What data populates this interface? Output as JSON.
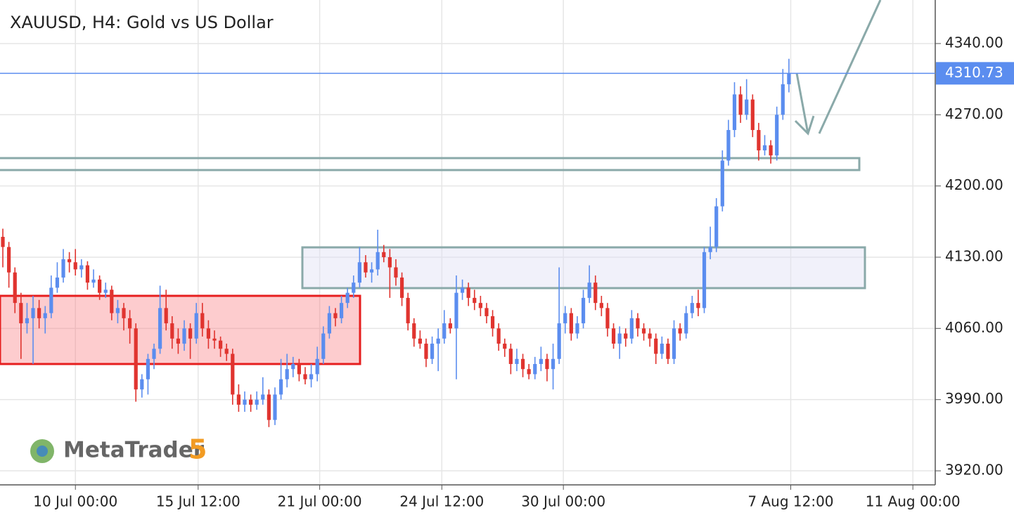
{
  "chart_data": {
    "type": "candlestick",
    "title": "XAUUSD, H4: Gold vs US Dollar",
    "watermark": "MetaTrader",
    "watermark_version": "5",
    "up_color": "#5b8def",
    "down_color": "#e0342f",
    "last_price": 4310.73,
    "ylim": [
      3906.2,
      4382.8
    ],
    "yticks": [
      {
        "value": 3920,
        "label": "3920.00"
      },
      {
        "value": 3990,
        "label": "3990.00"
      },
      {
        "value": 4060,
        "label": "4060.00"
      },
      {
        "value": 4130,
        "label": "4130.00"
      },
      {
        "value": 4200,
        "label": "4200.00"
      },
      {
        "value": 4270,
        "label": "4270.00"
      },
      {
        "value": 4340,
        "label": "4340.00"
      }
    ],
    "xlim": [
      -0.47,
      154.2
    ],
    "xticks": [
      {
        "value": 12,
        "label": "10 Jul 00:00"
      },
      {
        "value": 32.3,
        "label": "15 Jul 12:00"
      },
      {
        "value": 52.4,
        "label": "21 Jul 00:00"
      },
      {
        "value": 72.6,
        "label": "24 Jul 12:00"
      },
      {
        "value": 92.7,
        "label": "30 Jul 00:00"
      },
      {
        "value": 130.3,
        "label": "7 Aug 12:00"
      },
      {
        "value": 150.5,
        "label": "11 Aug 00:00"
      }
    ],
    "grid": true,
    "ohlc": [
      [
        4150,
        4158,
        4120,
        4140
      ],
      [
        4140,
        4145,
        4100,
        4115
      ],
      [
        4115,
        4120,
        4075,
        4085
      ],
      [
        4085,
        4095,
        4030,
        4065
      ],
      [
        4065,
        4085,
        4055,
        4070
      ],
      [
        4070,
        4092,
        4025,
        4080
      ],
      [
        4080,
        4088,
        4060,
        4070
      ],
      [
        4070,
        4082,
        4055,
        4075
      ],
      [
        4075,
        4112,
        4070,
        4100
      ],
      [
        4100,
        4125,
        4095,
        4110
      ],
      [
        4110,
        4138,
        4105,
        4128
      ],
      [
        4128,
        4135,
        4115,
        4125
      ],
      [
        4125,
        4138,
        4112,
        4118
      ],
      [
        4118,
        4128,
        4110,
        4122
      ],
      [
        4122,
        4126,
        4098,
        4105
      ],
      [
        4105,
        4118,
        4100,
        4108
      ],
      [
        4108,
        4112,
        4088,
        4095
      ],
      [
        4095,
        4105,
        4090,
        4098
      ],
      [
        4098,
        4102,
        4068,
        4075
      ],
      [
        4075,
        4088,
        4065,
        4080
      ],
      [
        4080,
        4085,
        4058,
        4070
      ],
      [
        4070,
        4078,
        4045,
        4060
      ],
      [
        4060,
        4065,
        3988,
        4000
      ],
      [
        4000,
        4015,
        3992,
        4010
      ],
      [
        4010,
        4035,
        3995,
        4030
      ],
      [
        4030,
        4045,
        4020,
        4040
      ],
      [
        4040,
        4102,
        4035,
        4080
      ],
      [
        4080,
        4098,
        4058,
        4065
      ],
      [
        4065,
        4072,
        4040,
        4050
      ],
      [
        4050,
        4060,
        4035,
        4045
      ],
      [
        4045,
        4068,
        4038,
        4060
      ],
      [
        4060,
        4065,
        4030,
        4050
      ],
      [
        4050,
        4085,
        4045,
        4075
      ],
      [
        4075,
        4085,
        4052,
        4060
      ],
      [
        4060,
        4068,
        4040,
        4050
      ],
      [
        4050,
        4058,
        4040,
        4048
      ],
      [
        4048,
        4052,
        4032,
        4040
      ],
      [
        4040,
        4045,
        4028,
        4035
      ],
      [
        4035,
        4040,
        3985,
        3995
      ],
      [
        3995,
        4005,
        3978,
        3985
      ],
      [
        3985,
        3998,
        3978,
        3990
      ],
      [
        3990,
        3995,
        3978,
        3985
      ],
      [
        3985,
        3998,
        3980,
        3990
      ],
      [
        3990,
        4012,
        3985,
        3995
      ],
      [
        3995,
        4000,
        3963,
        3970
      ],
      [
        3970,
        4002,
        3965,
        3995
      ],
      [
        3995,
        4030,
        3990,
        4010
      ],
      [
        4010,
        4035,
        4002,
        4020
      ],
      [
        4020,
        4032,
        4012,
        4025
      ],
      [
        4025,
        4030,
        4008,
        4015
      ],
      [
        4015,
        4022,
        4005,
        4010
      ],
      [
        4010,
        4025,
        4002,
        4015
      ],
      [
        4015,
        4042,
        4008,
        4030
      ],
      [
        4030,
        4062,
        4025,
        4055
      ],
      [
        4055,
        4082,
        4050,
        4075
      ],
      [
        4075,
        4080,
        4062,
        4070
      ],
      [
        4070,
        4092,
        4065,
        4085
      ],
      [
        4085,
        4100,
        4080,
        4095
      ],
      [
        4095,
        4112,
        4090,
        4105
      ],
      [
        4105,
        4140,
        4100,
        4125
      ],
      [
        4125,
        4132,
        4110,
        4115
      ],
      [
        4115,
        4125,
        4105,
        4118
      ],
      [
        4118,
        4157,
        4112,
        4135
      ],
      [
        4135,
        4142,
        4125,
        4130
      ],
      [
        4130,
        4138,
        4090,
        4120
      ],
      [
        4120,
        4128,
        4102,
        4110
      ],
      [
        4110,
        4115,
        4082,
        4090
      ],
      [
        4090,
        4095,
        4058,
        4065
      ],
      [
        4065,
        4070,
        4042,
        4050
      ],
      [
        4050,
        4058,
        4040,
        4045
      ],
      [
        4045,
        4050,
        4022,
        4030
      ],
      [
        4030,
        4052,
        4025,
        4045
      ],
      [
        4045,
        4060,
        4018,
        4050
      ],
      [
        4050,
        4078,
        4045,
        4065
      ],
      [
        4065,
        4070,
        4055,
        4060
      ],
      [
        4060,
        4112,
        4010,
        4095
      ],
      [
        4095,
        4108,
        4088,
        4100
      ],
      [
        4100,
        4105,
        4082,
        4090
      ],
      [
        4090,
        4098,
        4078,
        4085
      ],
      [
        4085,
        4092,
        4072,
        4080
      ],
      [
        4080,
        4085,
        4065,
        4072
      ],
      [
        4072,
        4078,
        4052,
        4060
      ],
      [
        4060,
        4065,
        4038,
        4045
      ],
      [
        4045,
        4050,
        4032,
        4040
      ],
      [
        4040,
        4045,
        4015,
        4025
      ],
      [
        4025,
        4040,
        4018,
        4030
      ],
      [
        4030,
        4035,
        4012,
        4020
      ],
      [
        4020,
        4025,
        4010,
        4015
      ],
      [
        4015,
        4032,
        4010,
        4025
      ],
      [
        4025,
        4042,
        4018,
        4030
      ],
      [
        4030,
        4035,
        4008,
        4020
      ],
      [
        4020,
        4045,
        4000,
        4030
      ],
      [
        4030,
        4120,
        4025,
        4065
      ],
      [
        4065,
        4082,
        4055,
        4075
      ],
      [
        4075,
        4080,
        4048,
        4055
      ],
      [
        4055,
        4072,
        4050,
        4065
      ],
      [
        4065,
        4098,
        4060,
        4090
      ],
      [
        4090,
        4122,
        4085,
        4105
      ],
      [
        4105,
        4112,
        4078,
        4085
      ],
      [
        4085,
        4092,
        4072,
        4080
      ],
      [
        4080,
        4085,
        4052,
        4060
      ],
      [
        4060,
        4065,
        4040,
        4045
      ],
      [
        4045,
        4062,
        4030,
        4055
      ],
      [
        4055,
        4060,
        4042,
        4050
      ],
      [
        4050,
        4078,
        4045,
        4070
      ],
      [
        4070,
        4075,
        4052,
        4060
      ],
      [
        4060,
        4065,
        4048,
        4055
      ],
      [
        4055,
        4060,
        4042,
        4050
      ],
      [
        4050,
        4055,
        4025,
        4035
      ],
      [
        4035,
        4052,
        4030,
        4045
      ],
      [
        4045,
        4050,
        4025,
        4030
      ],
      [
        4030,
        4068,
        4025,
        4060
      ],
      [
        4060,
        4065,
        4048,
        4055
      ],
      [
        4055,
        4082,
        4050,
        4075
      ],
      [
        4075,
        4092,
        4070,
        4085
      ],
      [
        4085,
        4098,
        4072,
        4080
      ],
      [
        4080,
        4140,
        4075,
        4135
      ],
      [
        4135,
        4160,
        4128,
        4140
      ],
      [
        4140,
        4188,
        4135,
        4180
      ],
      [
        4180,
        4235,
        4175,
        4225
      ],
      [
        4225,
        4265,
        4220,
        4255
      ],
      [
        4255,
        4302,
        4248,
        4290
      ],
      [
        4290,
        4298,
        4262,
        4270
      ],
      [
        4270,
        4305,
        4265,
        4285
      ],
      [
        4285,
        4290,
        4248,
        4255
      ],
      [
        4255,
        4262,
        4225,
        4235
      ],
      [
        4235,
        4250,
        4230,
        4240
      ],
      [
        4240,
        4245,
        4222,
        4230
      ],
      [
        4230,
        4278,
        4225,
        4270
      ],
      [
        4270,
        4315,
        4265,
        4300
      ],
      [
        4300,
        4325,
        4292,
        4310.73
      ]
    ]
  }
}
